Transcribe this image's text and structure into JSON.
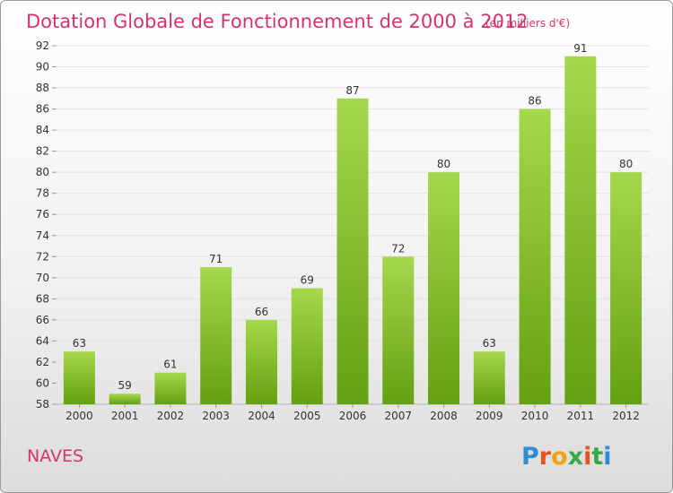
{
  "header": {
    "title": "Dotation Globale de Fonctionnement de 2000 à 2012",
    "unit": "(en milliers d'€)"
  },
  "footer": {
    "place": "NAVES",
    "logo": "Proxiti"
  },
  "colors": {
    "title": "#d6336c",
    "bar_top": "#a6d84c",
    "bar_bottom": "#64a011",
    "grid": "#e2e2e2"
  },
  "chart_data": {
    "type": "bar",
    "title": "Dotation Globale de Fonctionnement de 2000 à 2012",
    "subtitle": "(en milliers d'€)",
    "xlabel": "",
    "ylabel": "",
    "categories": [
      "2000",
      "2001",
      "2002",
      "2003",
      "2004",
      "2005",
      "2006",
      "2007",
      "2008",
      "2009",
      "2010",
      "2011",
      "2012"
    ],
    "values": [
      63,
      59,
      61,
      71,
      66,
      69,
      87,
      72,
      80,
      63,
      86,
      91,
      80
    ],
    "ylim": [
      58,
      92
    ],
    "yticks": [
      58,
      60,
      62,
      64,
      66,
      68,
      70,
      72,
      74,
      76,
      78,
      80,
      82,
      84,
      86,
      88,
      90,
      92
    ],
    "grid": true,
    "data_labels": true
  }
}
